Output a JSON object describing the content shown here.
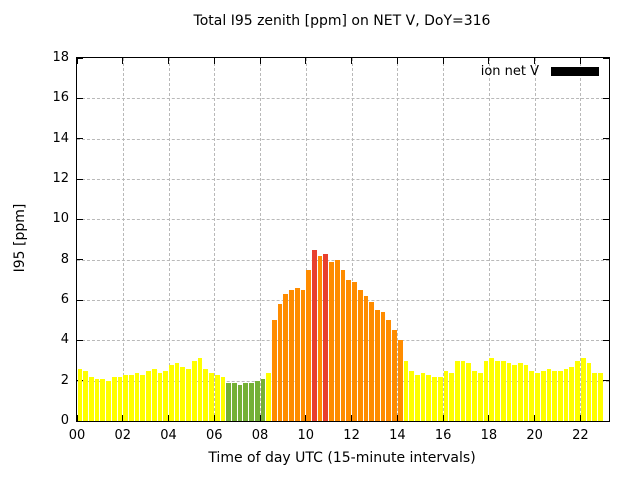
{
  "title": "Total I95 zenith [ppm] on NET V, DoY=316",
  "y_label": "I95 [ppm]",
  "x_label": "Time of day UTC (15-minute intervals)",
  "legend": {
    "label": "ion net V",
    "swatch_color": "#000000"
  },
  "chart_data": {
    "type": "bar",
    "title": "Total I95 zenith [ppm] on NET V, DoY=316",
    "xlabel": "Time of day UTC (15-minute intervals)",
    "ylabel": "I95 [ppm]",
    "grid": true,
    "legend_position": "top-right",
    "ylim": [
      0,
      18
    ],
    "xlim": [
      0,
      23.25
    ],
    "x_start_hour": 0,
    "interval_minutes": 15,
    "yticks": [
      0,
      2,
      4,
      6,
      8,
      10,
      12,
      14,
      16,
      18
    ],
    "xticks": [
      {
        "hour": 0,
        "label": "00"
      },
      {
        "hour": 2,
        "label": "02"
      },
      {
        "hour": 4,
        "label": "04"
      },
      {
        "hour": 6,
        "label": "06"
      },
      {
        "hour": 8,
        "label": "08"
      },
      {
        "hour": 10,
        "label": "10"
      },
      {
        "hour": 12,
        "label": "12"
      },
      {
        "hour": 14,
        "label": "14"
      },
      {
        "hour": 16,
        "label": "16"
      },
      {
        "hour": 18,
        "label": "18"
      },
      {
        "hour": 20,
        "label": "20"
      },
      {
        "hour": 22,
        "label": "22"
      }
    ],
    "palette": {
      "y": "#ffff00",
      "g": "#74b036",
      "o": "#ff8c00",
      "r": "#e8402f"
    },
    "values": [
      2.6,
      2.5,
      2.2,
      2.1,
      2.1,
      2.0,
      2.2,
      2.2,
      2.3,
      2.3,
      2.4,
      2.3,
      2.5,
      2.6,
      2.4,
      2.5,
      2.8,
      2.9,
      2.7,
      2.6,
      3.0,
      3.1,
      2.6,
      2.4,
      2.3,
      2.2,
      1.9,
      1.9,
      1.8,
      1.9,
      1.9,
      2.0,
      2.1,
      2.4,
      5.0,
      5.8,
      6.3,
      6.5,
      6.6,
      6.5,
      7.5,
      8.5,
      8.2,
      8.3,
      7.9,
      8.0,
      7.5,
      7.0,
      6.9,
      6.5,
      6.2,
      5.9,
      5.5,
      5.4,
      5.0,
      4.5,
      4.0,
      3.0,
      2.5,
      2.3,
      2.4,
      2.3,
      2.2,
      2.2,
      2.5,
      2.4,
      3.0,
      3.0,
      2.9,
      2.5,
      2.4,
      3.0,
      3.1,
      3.0,
      3.0,
      2.9,
      2.8,
      2.9,
      2.8,
      2.5,
      2.4,
      2.5,
      2.6,
      2.5,
      2.5,
      2.6,
      2.7,
      3.0,
      3.1,
      2.9,
      2.4,
      2.4
    ],
    "colors": [
      "y",
      "y",
      "y",
      "y",
      "y",
      "y",
      "y",
      "y",
      "y",
      "y",
      "y",
      "y",
      "y",
      "y",
      "y",
      "y",
      "y",
      "y",
      "y",
      "y",
      "y",
      "y",
      "y",
      "y",
      "y",
      "y",
      "g",
      "g",
      "g",
      "g",
      "g",
      "g",
      "g",
      "y",
      "o",
      "o",
      "o",
      "o",
      "o",
      "o",
      "o",
      "r",
      "o",
      "r",
      "o",
      "o",
      "o",
      "o",
      "o",
      "o",
      "o",
      "o",
      "o",
      "o",
      "o",
      "o",
      "o",
      "y",
      "y",
      "y",
      "y",
      "y",
      "y",
      "y",
      "y",
      "y",
      "y",
      "y",
      "y",
      "y",
      "y",
      "y",
      "y",
      "y",
      "y",
      "y",
      "y",
      "y",
      "y",
      "y",
      "y",
      "y",
      "y",
      "y",
      "y",
      "y",
      "y",
      "y",
      "y",
      "y",
      "y",
      "y"
    ]
  }
}
